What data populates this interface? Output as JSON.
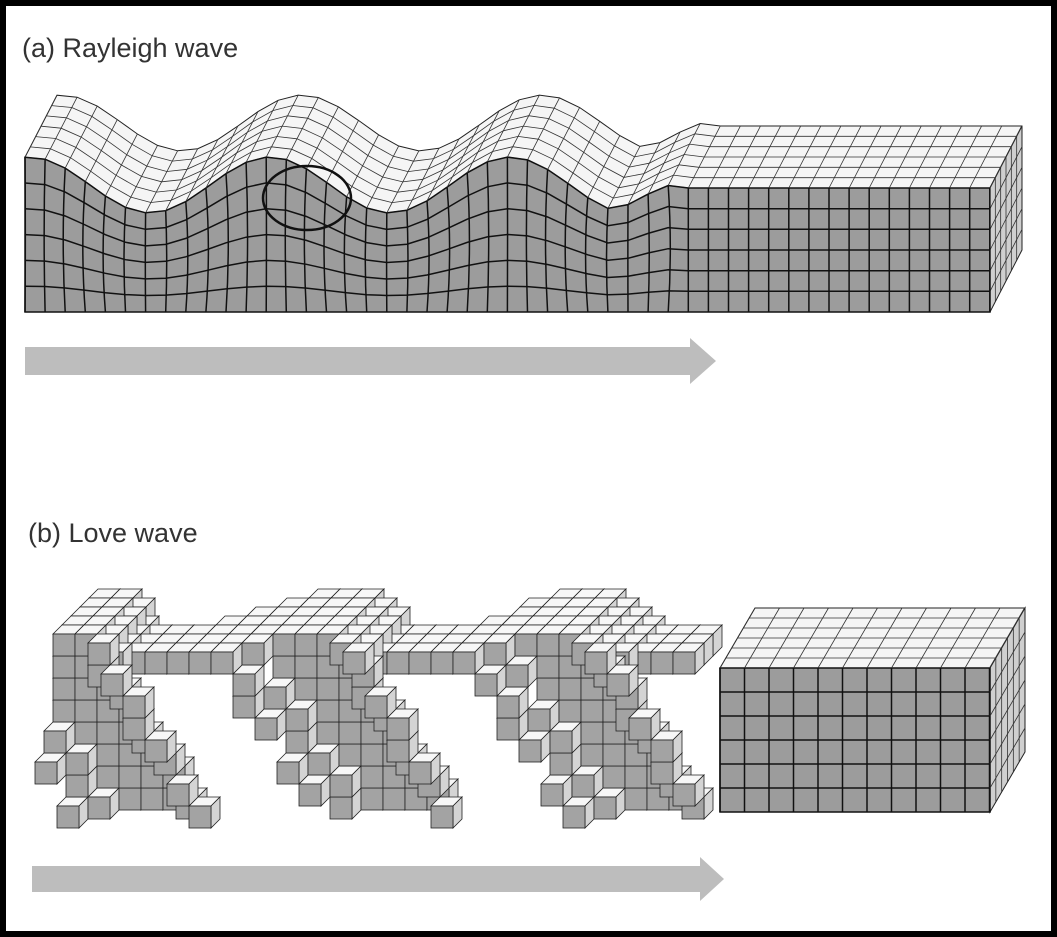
{
  "panels": [
    {
      "label": "(a)  Rayleigh wave"
    },
    {
      "label": "(b)  Love wave"
    }
  ]
}
